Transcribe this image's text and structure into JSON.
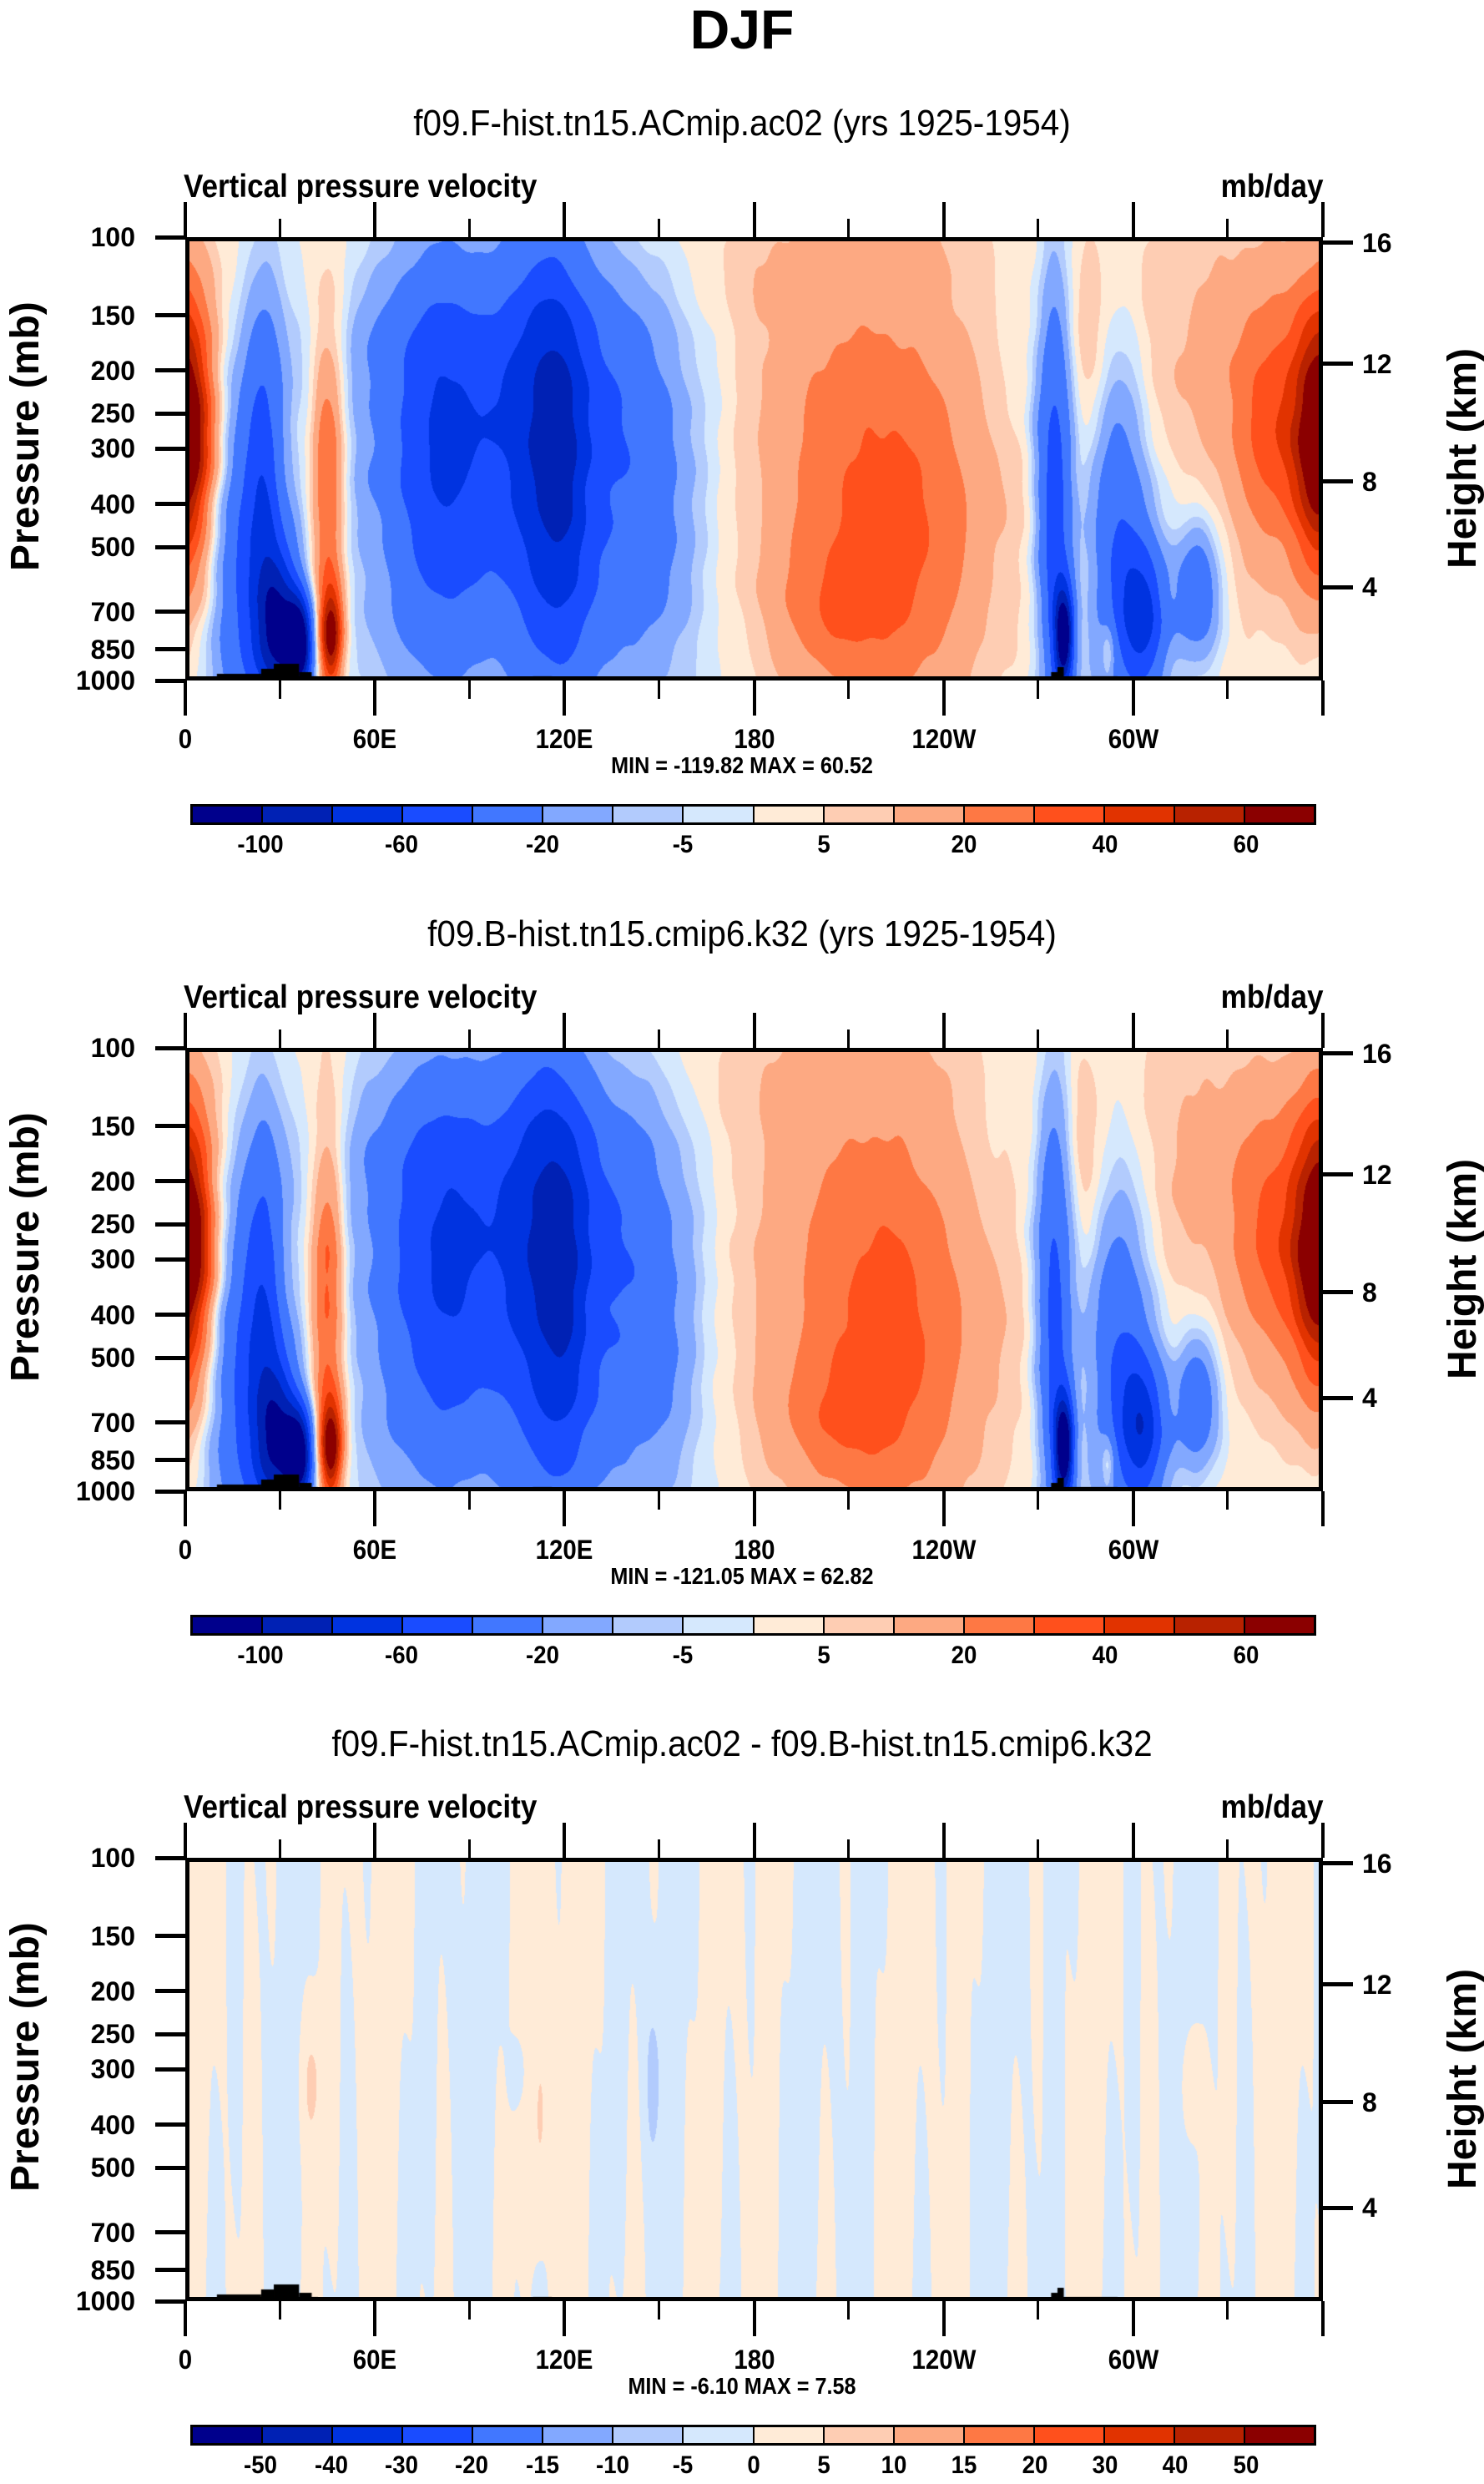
{
  "figure": {
    "title": "DJF"
  },
  "chart_data": [
    {
      "type": "heatmap",
      "title": "f09.F-hist.tn15.ACmip.ac02 (yrs 1925-1954)",
      "left_string": "Vertical pressure velocity",
      "right_string": "mb/day",
      "xlabel": "",
      "ylabel": "Pressure (mb)",
      "ylabel_right": "Height (km)",
      "x_tick_labels": [
        "0",
        "60E",
        "120E",
        "180",
        "120W",
        "60W"
      ],
      "x_range_deg": [
        0,
        360
      ],
      "y_tick_labels": [
        "100",
        "150",
        "200",
        "250",
        "300",
        "400",
        "500",
        "700",
        "850",
        "1000"
      ],
      "y_range_mb": [
        100,
        1000
      ],
      "y_right_tick_labels": [
        "16",
        "12",
        "8",
        "4"
      ],
      "stats": "MIN = -119.82  MAX =  60.52",
      "min": -119.82,
      "max": 60.52,
      "colorbar": {
        "levels": [
          -100,
          -80,
          -60,
          -40,
          -20,
          -10,
          -5,
          0,
          5,
          10,
          20,
          30,
          40,
          50,
          60
        ],
        "labels": [
          "-100",
          "-60",
          "-20",
          "-5",
          "5",
          "20",
          "40",
          "60"
        ],
        "colors": [
          "#00008c",
          "#0021b4",
          "#0033e0",
          "#1a4cff",
          "#4177ff",
          "#82a8ff",
          "#b2cbfd",
          "#d5e8fd",
          "#ffebd7",
          "#fecdb3",
          "#fda982",
          "#fe7844",
          "#ff501c",
          "#e13300",
          "#b82200",
          "#8b0000"
        ]
      }
    },
    {
      "type": "heatmap",
      "title": "f09.B-hist.tn15.cmip6.k32 (yrs 1925-1954)",
      "left_string": "Vertical pressure velocity",
      "right_string": "mb/day",
      "xlabel": "",
      "ylabel": "Pressure (mb)",
      "ylabel_right": "Height (km)",
      "x_tick_labels": [
        "0",
        "60E",
        "120E",
        "180",
        "120W",
        "60W"
      ],
      "x_range_deg": [
        0,
        360
      ],
      "y_tick_labels": [
        "100",
        "150",
        "200",
        "250",
        "300",
        "400",
        "500",
        "700",
        "850",
        "1000"
      ],
      "y_range_mb": [
        100,
        1000
      ],
      "y_right_tick_labels": [
        "16",
        "12",
        "8",
        "4"
      ],
      "stats": "MIN = -121.05  MAX =  62.82",
      "min": -121.05,
      "max": 62.82,
      "colorbar": {
        "levels": [
          -100,
          -80,
          -60,
          -40,
          -20,
          -10,
          -5,
          0,
          5,
          10,
          20,
          30,
          40,
          50,
          60
        ],
        "labels": [
          "-100",
          "-60",
          "-20",
          "-5",
          "5",
          "20",
          "40",
          "60"
        ],
        "colors": [
          "#00008c",
          "#0021b4",
          "#0033e0",
          "#1a4cff",
          "#4177ff",
          "#82a8ff",
          "#b2cbfd",
          "#d5e8fd",
          "#ffebd7",
          "#fecdb3",
          "#fda982",
          "#fe7844",
          "#ff501c",
          "#e13300",
          "#b82200",
          "#8b0000"
        ]
      }
    },
    {
      "type": "heatmap",
      "title": "f09.F-hist.tn15.ACmip.ac02 - f09.B-hist.tn15.cmip6.k32",
      "left_string": "Vertical pressure velocity",
      "right_string": "mb/day",
      "xlabel": "",
      "ylabel": "Pressure (mb)",
      "ylabel_right": "Height (km)",
      "x_tick_labels": [
        "0",
        "60E",
        "120E",
        "180",
        "120W",
        "60W"
      ],
      "x_range_deg": [
        0,
        360
      ],
      "y_tick_labels": [
        "100",
        "150",
        "200",
        "250",
        "300",
        "400",
        "500",
        "700",
        "850",
        "1000"
      ],
      "y_range_mb": [
        100,
        1000
      ],
      "y_right_tick_labels": [
        "16",
        "12",
        "8",
        "4"
      ],
      "stats": "MIN =  -6.10  MAX =  7.58",
      "min": -6.1,
      "max": 7.58,
      "colorbar": {
        "levels": [
          -50,
          -40,
          -30,
          -20,
          -15,
          -10,
          -5,
          0,
          5,
          10,
          15,
          20,
          30,
          40,
          50
        ],
        "labels": [
          "-50",
          "-40",
          "-30",
          "-20",
          "-15",
          "-10",
          "-5",
          "0",
          "5",
          "10",
          "15",
          "20",
          "30",
          "40",
          "50"
        ],
        "colors": [
          "#00008c",
          "#0021b4",
          "#0033e0",
          "#1a4cff",
          "#4177ff",
          "#82a8ff",
          "#b2cbfd",
          "#d5e8fd",
          "#ffebd7",
          "#fecdb3",
          "#fda982",
          "#fe7844",
          "#ff501c",
          "#e13300",
          "#b82200",
          "#8b0000"
        ]
      }
    }
  ]
}
